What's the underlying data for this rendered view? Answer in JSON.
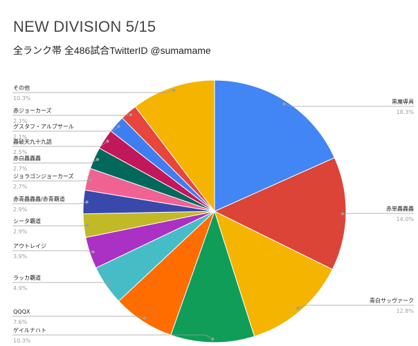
{
  "chart_data": {
    "type": "pie",
    "title": "NEW DIVISION 5/15",
    "subtitle": "全ランク帯 全486試合TwitterID @sumamame",
    "slices": [
      {
        "label": "黒魔導具",
        "percent_label": "18.3%",
        "value": 18.3,
        "color": "#4285f4"
      },
      {
        "label": "赤単轟轟轟",
        "percent_label": "14.0%",
        "value": 14.0,
        "color": "#db4437"
      },
      {
        "label": "青白サッヴァーク",
        "percent_label": "12.8%",
        "value": 12.8,
        "color": "#f4b400"
      },
      {
        "label": "ゲイルナハト",
        "percent_label": "10.3%",
        "value": 10.3,
        "color": "#0f9d58"
      },
      {
        "label": "QQQX",
        "percent_label": "7.6%",
        "value": 7.6,
        "color": "#ff6d00"
      },
      {
        "label": "ラッカ覇道",
        "percent_label": "4.9%",
        "value": 4.9,
        "color": "#46bdc6"
      },
      {
        "label": "アウトレイジ",
        "percent_label": "3.9%",
        "value": 3.9,
        "color": "#ab30c4"
      },
      {
        "label": "シータ覇道",
        "percent_label": "2.9%",
        "value": 2.9,
        "color": "#c2b927"
      },
      {
        "label": "赤青轟轟轟/赤青覇道",
        "percent_label": "2.9%",
        "value": 2.9,
        "color": "#3949ab"
      },
      {
        "label": "ジョラゴンジョーカーズ",
        "percent_label": "2.7%",
        "value": 2.7,
        "color": "#f06292"
      },
      {
        "label": "赤白轟轟轟",
        "percent_label": "2.7%",
        "value": 2.7,
        "color": "#00695c"
      },
      {
        "label": "轟破天九十九語",
        "percent_label": "2.5%",
        "value": 2.5,
        "color": "#c2185b"
      },
      {
        "label": "グスタフ・アルプサール",
        "percent_label": "2.1%",
        "value": 2.1,
        "color": "#3f7ef0"
      },
      {
        "label": "赤ジョーカーズ",
        "percent_label": "2.1%",
        "value": 2.1,
        "color": "#e8453c"
      },
      {
        "label": "その他",
        "percent_label": "10.3%",
        "value": 10.3,
        "color": "#f4b400"
      }
    ],
    "legend": "none"
  }
}
